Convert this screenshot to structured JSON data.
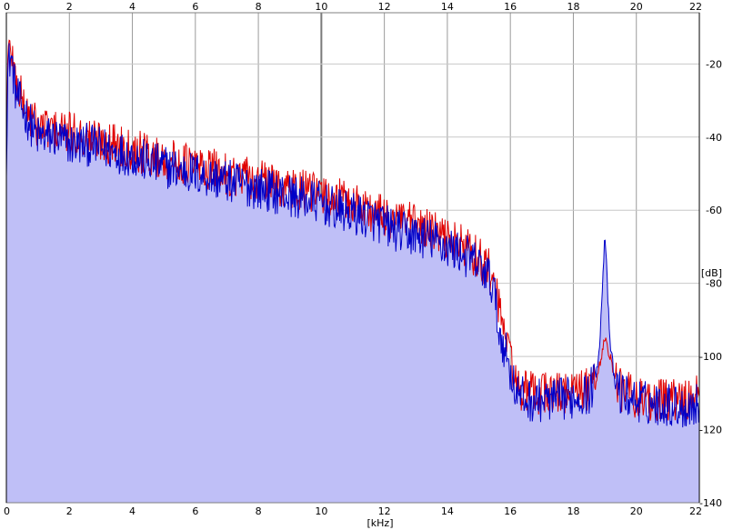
{
  "colors": {
    "background": "#ffffff",
    "grid": "#9a9a9a",
    "grid_major": "#7a7a7a",
    "fill": "#bfbff7",
    "series_blue": "#0000c8",
    "series_red": "#e00000"
  },
  "chart_data": {
    "type": "line",
    "title": "",
    "xlabel": "[kHz]",
    "ylabel": "[dB]",
    "xlim": [
      0,
      22
    ],
    "ylim": [
      -140,
      -6
    ],
    "x_ticks": [
      "0",
      "2",
      "4",
      "6",
      "8",
      "10",
      "12",
      "14",
      "16",
      "18",
      "20",
      "22"
    ],
    "y_ticks": [
      "-20",
      "-40",
      "-60",
      "-80",
      "-100",
      "-120",
      "-140"
    ],
    "grid": true,
    "x_tick_labels_top": true,
    "x_tick_labels_bottom": true,
    "y_tick_labels_side": "right",
    "series": [
      {
        "color": "blue",
        "filled": true,
        "envelope_points": [
          [
            0.0,
            -45
          ],
          [
            0.05,
            -20
          ],
          [
            0.15,
            -18
          ],
          [
            0.3,
            -28
          ],
          [
            0.5,
            -32
          ],
          [
            0.8,
            -37
          ],
          [
            1.0,
            -40
          ],
          [
            1.5,
            -40
          ],
          [
            2.0,
            -42
          ],
          [
            2.5,
            -42
          ],
          [
            3.0,
            -43
          ],
          [
            3.5,
            -44
          ],
          [
            4.0,
            -45
          ],
          [
            4.5,
            -47
          ],
          [
            5.0,
            -48
          ],
          [
            5.5,
            -49
          ],
          [
            6.0,
            -50
          ],
          [
            6.5,
            -51
          ],
          [
            7.0,
            -52
          ],
          [
            7.5,
            -53
          ],
          [
            8.0,
            -54
          ],
          [
            8.5,
            -55
          ],
          [
            9.0,
            -56
          ],
          [
            9.5,
            -57
          ],
          [
            10.0,
            -58
          ],
          [
            10.5,
            -60
          ],
          [
            11.0,
            -61
          ],
          [
            11.5,
            -62
          ],
          [
            12.0,
            -64
          ],
          [
            12.5,
            -66
          ],
          [
            13.0,
            -67
          ],
          [
            13.5,
            -68
          ],
          [
            14.0,
            -70
          ],
          [
            14.5,
            -72
          ],
          [
            15.0,
            -75
          ],
          [
            15.3,
            -78
          ],
          [
            15.5,
            -82
          ],
          [
            15.6,
            -92
          ],
          [
            15.8,
            -97
          ],
          [
            16.0,
            -104
          ],
          [
            16.2,
            -110
          ],
          [
            16.5,
            -112
          ],
          [
            17.0,
            -112
          ],
          [
            17.5,
            -112
          ],
          [
            18.0,
            -111
          ],
          [
            18.5,
            -110
          ],
          [
            18.7,
            -106
          ],
          [
            18.85,
            -95
          ],
          [
            18.95,
            -75
          ],
          [
            19.0,
            -66
          ],
          [
            19.05,
            -75
          ],
          [
            19.15,
            -95
          ],
          [
            19.3,
            -106
          ],
          [
            19.5,
            -110
          ],
          [
            20.0,
            -112
          ],
          [
            20.5,
            -113
          ],
          [
            21.0,
            -113
          ],
          [
            21.5,
            -114
          ],
          [
            22.0,
            -113
          ]
        ]
      },
      {
        "color": "red",
        "filled": false,
        "envelope_points": [
          [
            0.0,
            -40
          ],
          [
            0.05,
            -18
          ],
          [
            0.15,
            -15
          ],
          [
            0.3,
            -25
          ],
          [
            0.5,
            -30
          ],
          [
            0.8,
            -35
          ],
          [
            1.0,
            -37
          ],
          [
            1.5,
            -38
          ],
          [
            2.0,
            -39
          ],
          [
            2.5,
            -40
          ],
          [
            3.0,
            -41
          ],
          [
            3.5,
            -42
          ],
          [
            4.0,
            -43
          ],
          [
            4.5,
            -45
          ],
          [
            5.0,
            -46
          ],
          [
            5.5,
            -47
          ],
          [
            6.0,
            -48
          ],
          [
            6.5,
            -49
          ],
          [
            7.0,
            -50
          ],
          [
            7.5,
            -51
          ],
          [
            8.0,
            -52
          ],
          [
            8.5,
            -53
          ],
          [
            9.0,
            -54
          ],
          [
            9.5,
            -55
          ],
          [
            10.0,
            -56
          ],
          [
            10.5,
            -57
          ],
          [
            11.0,
            -58
          ],
          [
            11.5,
            -60
          ],
          [
            12.0,
            -62
          ],
          [
            12.5,
            -63
          ],
          [
            13.0,
            -64
          ],
          [
            13.5,
            -66
          ],
          [
            14.0,
            -68
          ],
          [
            14.5,
            -70
          ],
          [
            15.0,
            -73
          ],
          [
            15.3,
            -76
          ],
          [
            15.5,
            -80
          ],
          [
            15.6,
            -86
          ],
          [
            15.8,
            -92
          ],
          [
            16.0,
            -100
          ],
          [
            16.2,
            -108
          ],
          [
            16.5,
            -110
          ],
          [
            17.0,
            -110
          ],
          [
            17.5,
            -110
          ],
          [
            18.0,
            -110
          ],
          [
            18.5,
            -109
          ],
          [
            18.8,
            -104
          ],
          [
            18.95,
            -97
          ],
          [
            19.0,
            -95
          ],
          [
            19.1,
            -98
          ],
          [
            19.3,
            -105
          ],
          [
            19.5,
            -109
          ],
          [
            20.0,
            -111
          ],
          [
            20.5,
            -112
          ],
          [
            21.0,
            -112
          ],
          [
            21.5,
            -112
          ],
          [
            22.0,
            -111
          ]
        ]
      }
    ]
  }
}
